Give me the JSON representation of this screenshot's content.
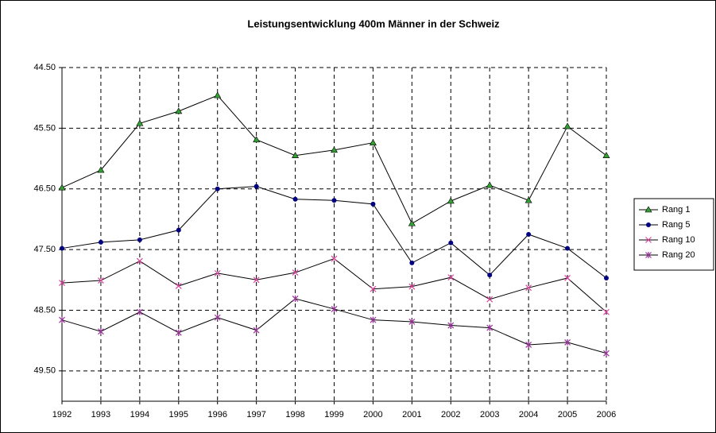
{
  "chart_data": {
    "type": "line",
    "title": "Leistungsentwicklung 400m Männer in der Schweiz",
    "categories": [
      "1992",
      "1993",
      "1994",
      "1995",
      "1996",
      "1997",
      "1998",
      "1999",
      "2000",
      "2001",
      "2002",
      "2003",
      "2004",
      "2005",
      "2006"
    ],
    "series": [
      {
        "name": "Rang 1",
        "color": "#33a033",
        "marker": "triangle",
        "values": [
          46.48,
          46.19,
          45.42,
          45.22,
          44.96,
          45.69,
          45.95,
          45.86,
          45.74,
          47.07,
          46.7,
          46.44,
          46.69,
          45.47,
          45.95
        ]
      },
      {
        "name": "Rang 5",
        "color": "#000080",
        "marker": "circle",
        "values": [
          47.48,
          47.38,
          47.34,
          47.18,
          46.5,
          46.46,
          46.67,
          46.69,
          46.75,
          47.72,
          47.39,
          47.92,
          47.25,
          47.48,
          47.97
        ]
      },
      {
        "name": "Rang 10",
        "color": "#e040a0",
        "marker": "x",
        "values": [
          48.05,
          48.01,
          47.69,
          48.1,
          47.89,
          48.0,
          47.88,
          47.65,
          48.15,
          48.11,
          47.96,
          48.32,
          48.13,
          47.97,
          48.53
        ]
      },
      {
        "name": "Rang 20",
        "color": "#993399",
        "marker": "star",
        "values": [
          48.66,
          48.85,
          48.53,
          48.87,
          48.62,
          48.83,
          48.31,
          48.48,
          48.66,
          48.69,
          48.75,
          48.79,
          49.07,
          49.03,
          49.21
        ]
      }
    ],
    "line_color": "#000000",
    "ylim": [
      44.5,
      50.0
    ],
    "y_reversed": true,
    "yticks": [
      {
        "value": 44.5,
        "label": "44.50"
      },
      {
        "value": 45.5,
        "label": "45.50"
      },
      {
        "value": 46.5,
        "label": "46.50"
      },
      {
        "value": 47.5,
        "label": "47.50"
      },
      {
        "value": 48.5,
        "label": "48.50"
      },
      {
        "value": 49.5,
        "label": "49.50"
      }
    ],
    "grid": true,
    "legend": "right"
  }
}
